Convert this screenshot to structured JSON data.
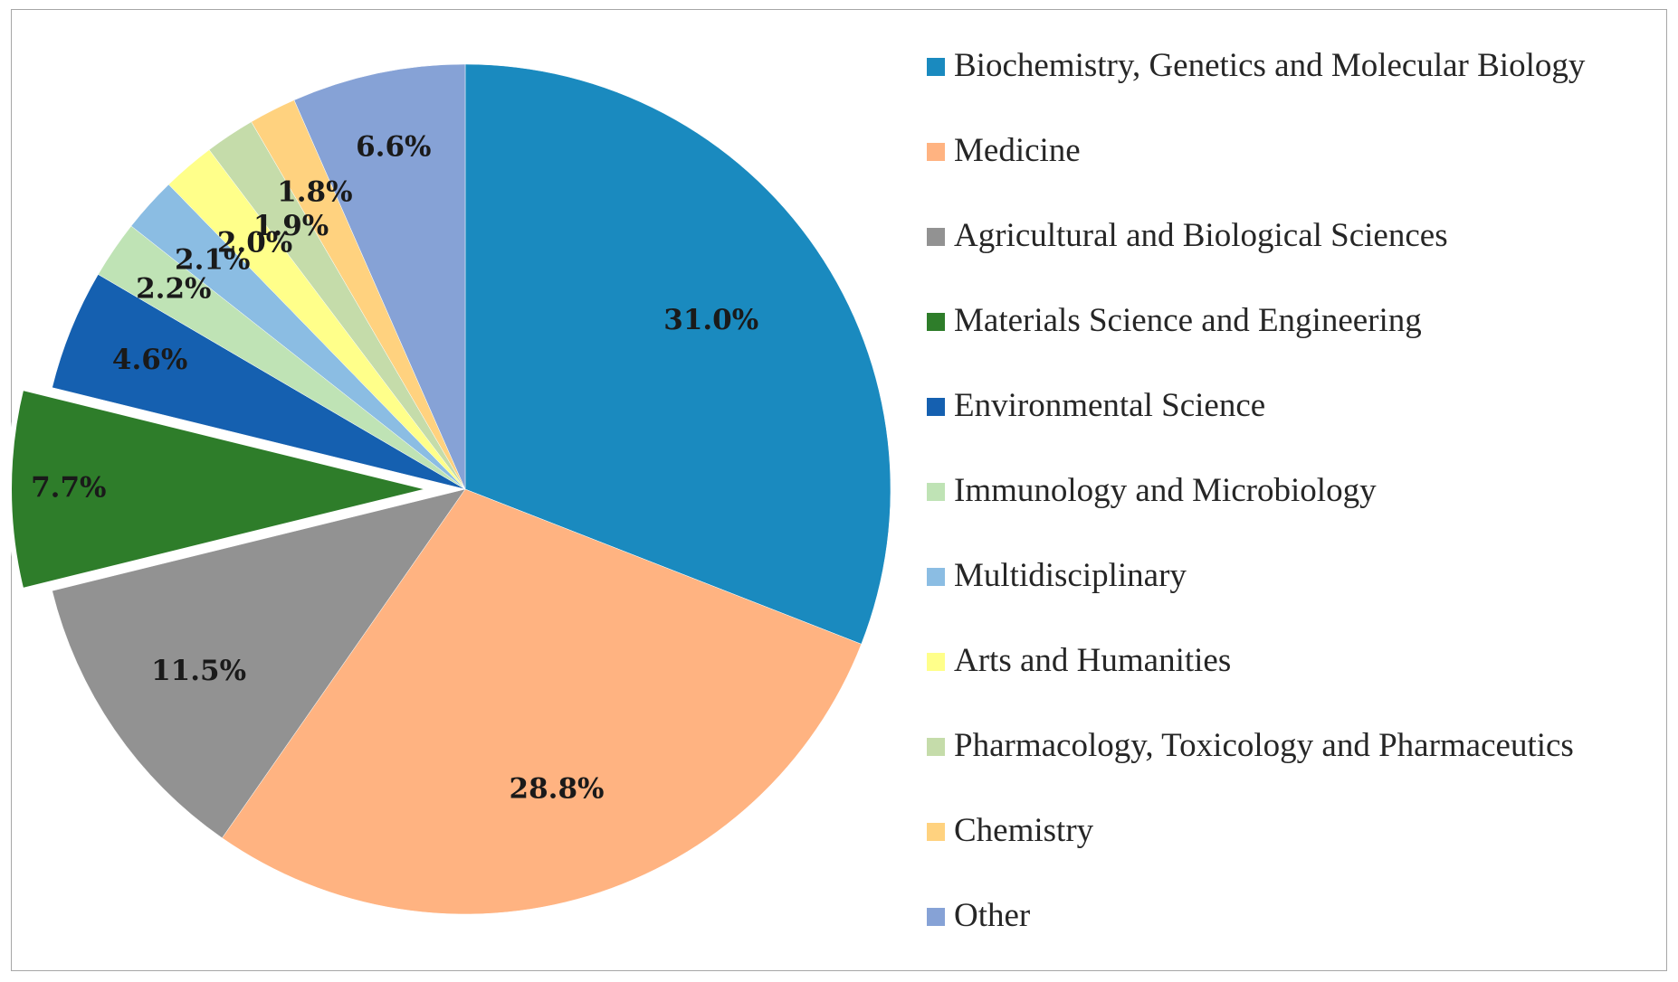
{
  "chart_data": {
    "type": "pie",
    "title": "",
    "start_angle_deg": 0,
    "direction": "clockwise",
    "exploded_slice": "Materials Science and Engineering",
    "legend_position": "right",
    "slices": [
      {
        "name": "Biochemistry, Genetics and Molecular Biology",
        "value": 31.0,
        "label": "31.0%",
        "color": "#1a8abf"
      },
      {
        "name": "Medicine",
        "value": 28.8,
        "label": "28.8%",
        "color": "#ffb381"
      },
      {
        "name": "Agricultural and Biological Sciences",
        "value": 11.5,
        "label": "11.5%",
        "color": "#929292"
      },
      {
        "name": "Materials Science and Engineering",
        "value": 7.7,
        "label": "7.7%",
        "color": "#2e7d2a"
      },
      {
        "name": "Environmental Science",
        "value": 4.6,
        "label": "4.6%",
        "color": "#1560b0"
      },
      {
        "name": "Immunology and Microbiology",
        "value": 2.2,
        "label": "2.2%",
        "color": "#bfe3b5"
      },
      {
        "name": "Multidisciplinary",
        "value": 2.1,
        "label": "2.1%",
        "color": "#8bbde3"
      },
      {
        "name": "Arts and Humanities",
        "value": 2.0,
        "label": "2.0%",
        "color": "#ffff8a"
      },
      {
        "name": "Pharmacology, Toxicology and Pharmaceutics",
        "value": 1.9,
        "label": "1.9%",
        "color": "#c5dcaa"
      },
      {
        "name": "Chemistry",
        "value": 1.8,
        "label": "1.8%",
        "color": "#ffd27f"
      },
      {
        "name": "Other",
        "value": 6.6,
        "label": "6.6%",
        "color": "#86a2d6"
      }
    ]
  }
}
